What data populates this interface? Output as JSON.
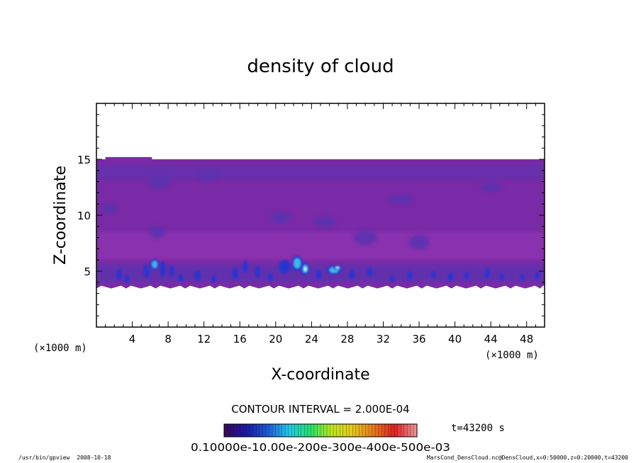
{
  "chart_data": {
    "type": "heatmap",
    "title": "density of cloud",
    "xlabel": "X-coordinate",
    "ylabel": "Z-coordinate",
    "x_unit": "(×1000 m)",
    "y_unit": "(×1000 m)",
    "xlim": [
      0,
      50
    ],
    "ylim": [
      0,
      20
    ],
    "x_ticks": [
      4,
      8,
      12,
      16,
      20,
      24,
      28,
      32,
      36,
      40,
      44,
      48
    ],
    "y_ticks": [
      5,
      10,
      15
    ],
    "grid": false,
    "contour_interval_label": "CONTOUR INTERVAL = 2.000E-04",
    "time_label": "t=43200 s",
    "colorbar_tick_labels": "0.10000e-10.00e-200e-300e-400e-500e-03",
    "colorbar_colors": [
      "#3a0a5e",
      "#1a1aa8",
      "#1e5ad8",
      "#22c8e6",
      "#22e070",
      "#b8e61e",
      "#e6c81e",
      "#e67a1e",
      "#e02020",
      "#e89090"
    ],
    "field_colors": {
      "background": "#7a2aa6",
      "light": "#9a3ab8",
      "dark": "#5a34b0",
      "blue": "#2a34d0",
      "cyan": "#3cb8e8",
      "white": "#e8f6ff"
    },
    "cloud_layer": {
      "z_bottom": 3.7,
      "z_top": 15.0
    },
    "cells": [
      {
        "x": 2.5,
        "z": 4.7,
        "w": 0.6,
        "h": 1.0,
        "level": 2
      },
      {
        "x": 3.4,
        "z": 4.3,
        "w": 0.5,
        "h": 0.7,
        "level": 2
      },
      {
        "x": 5.6,
        "z": 5.0,
        "w": 0.7,
        "h": 1.2,
        "level": 2
      },
      {
        "x": 6.5,
        "z": 5.6,
        "w": 0.9,
        "h": 1.0,
        "level": 3
      },
      {
        "x": 7.4,
        "z": 5.2,
        "w": 0.6,
        "h": 1.4,
        "level": 2
      },
      {
        "x": 8.4,
        "z": 5.0,
        "w": 0.5,
        "h": 1.0,
        "level": 2
      },
      {
        "x": 9.4,
        "z": 4.4,
        "w": 0.6,
        "h": 0.7,
        "level": 2
      },
      {
        "x": 11.3,
        "z": 4.6,
        "w": 0.7,
        "h": 0.9,
        "level": 2
      },
      {
        "x": 13.1,
        "z": 4.3,
        "w": 0.5,
        "h": 0.7,
        "level": 2
      },
      {
        "x": 15.5,
        "z": 4.8,
        "w": 0.7,
        "h": 1.0,
        "level": 2
      },
      {
        "x": 16.6,
        "z": 5.4,
        "w": 0.6,
        "h": 1.1,
        "level": 2
      },
      {
        "x": 18.0,
        "z": 4.9,
        "w": 0.6,
        "h": 1.0,
        "level": 2
      },
      {
        "x": 19.4,
        "z": 4.5,
        "w": 0.5,
        "h": 0.8,
        "level": 2
      },
      {
        "x": 21.0,
        "z": 5.4,
        "w": 1.3,
        "h": 1.2,
        "level": 2
      },
      {
        "x": 22.4,
        "z": 5.7,
        "w": 1.2,
        "h": 1.4,
        "level": 3
      },
      {
        "x": 23.3,
        "z": 5.2,
        "w": 0.9,
        "h": 1.1,
        "level": 4
      },
      {
        "x": 24.8,
        "z": 4.7,
        "w": 0.6,
        "h": 0.9,
        "level": 2
      },
      {
        "x": 26.5,
        "z": 5.1,
        "w": 1.6,
        "h": 0.8,
        "level": 3
      },
      {
        "x": 26.9,
        "z": 5.3,
        "w": 0.9,
        "h": 0.4,
        "level": 4
      },
      {
        "x": 28.5,
        "z": 4.7,
        "w": 0.6,
        "h": 0.9,
        "level": 2
      },
      {
        "x": 30.5,
        "z": 4.9,
        "w": 0.6,
        "h": 0.8,
        "level": 2
      },
      {
        "x": 33.0,
        "z": 4.3,
        "w": 0.5,
        "h": 0.6,
        "level": 2
      },
      {
        "x": 35.0,
        "z": 4.6,
        "w": 0.6,
        "h": 0.8,
        "level": 2
      },
      {
        "x": 37.6,
        "z": 4.7,
        "w": 0.5,
        "h": 0.7,
        "level": 2
      },
      {
        "x": 39.5,
        "z": 4.5,
        "w": 0.6,
        "h": 0.8,
        "level": 2
      },
      {
        "x": 41.3,
        "z": 4.6,
        "w": 0.5,
        "h": 0.7,
        "level": 2
      },
      {
        "x": 43.6,
        "z": 4.8,
        "w": 0.6,
        "h": 0.9,
        "level": 2
      },
      {
        "x": 45.2,
        "z": 4.5,
        "w": 0.5,
        "h": 0.6,
        "level": 2
      },
      {
        "x": 47.5,
        "z": 4.4,
        "w": 0.5,
        "h": 0.6,
        "level": 2
      },
      {
        "x": 49.2,
        "z": 4.6,
        "w": 0.5,
        "h": 0.7,
        "level": 2
      }
    ],
    "upper_structures": [
      {
        "x": 7.0,
        "z": 13.0,
        "w": 2.6,
        "h": 1.3,
        "level": 1
      },
      {
        "x": 12.5,
        "z": 13.5,
        "w": 2.0,
        "h": 0.9,
        "level": 1
      },
      {
        "x": 1.5,
        "z": 10.6,
        "w": 1.8,
        "h": 1.0,
        "level": 1
      },
      {
        "x": 6.8,
        "z": 8.5,
        "w": 1.8,
        "h": 1.1,
        "level": 1
      },
      {
        "x": 20.5,
        "z": 9.8,
        "w": 2.2,
        "h": 1.1,
        "level": 1
      },
      {
        "x": 25.5,
        "z": 9.4,
        "w": 2.5,
        "h": 1.0,
        "level": 1
      },
      {
        "x": 30.0,
        "z": 8.0,
        "w": 2.6,
        "h": 1.3,
        "level": 1
      },
      {
        "x": 36.0,
        "z": 7.6,
        "w": 2.3,
        "h": 1.3,
        "level": 1
      },
      {
        "x": 34.0,
        "z": 11.4,
        "w": 3.0,
        "h": 0.8,
        "level": 1
      },
      {
        "x": 44.0,
        "z": 12.5,
        "w": 2.5,
        "h": 0.8,
        "level": 1
      }
    ]
  },
  "footer": {
    "program": "/usr/bin/gpview",
    "date": "2008-10-18",
    "source": "MarsCond_DensCloud.nc@DensCloud,x=0:50000,z=0:20000,t=43200"
  }
}
